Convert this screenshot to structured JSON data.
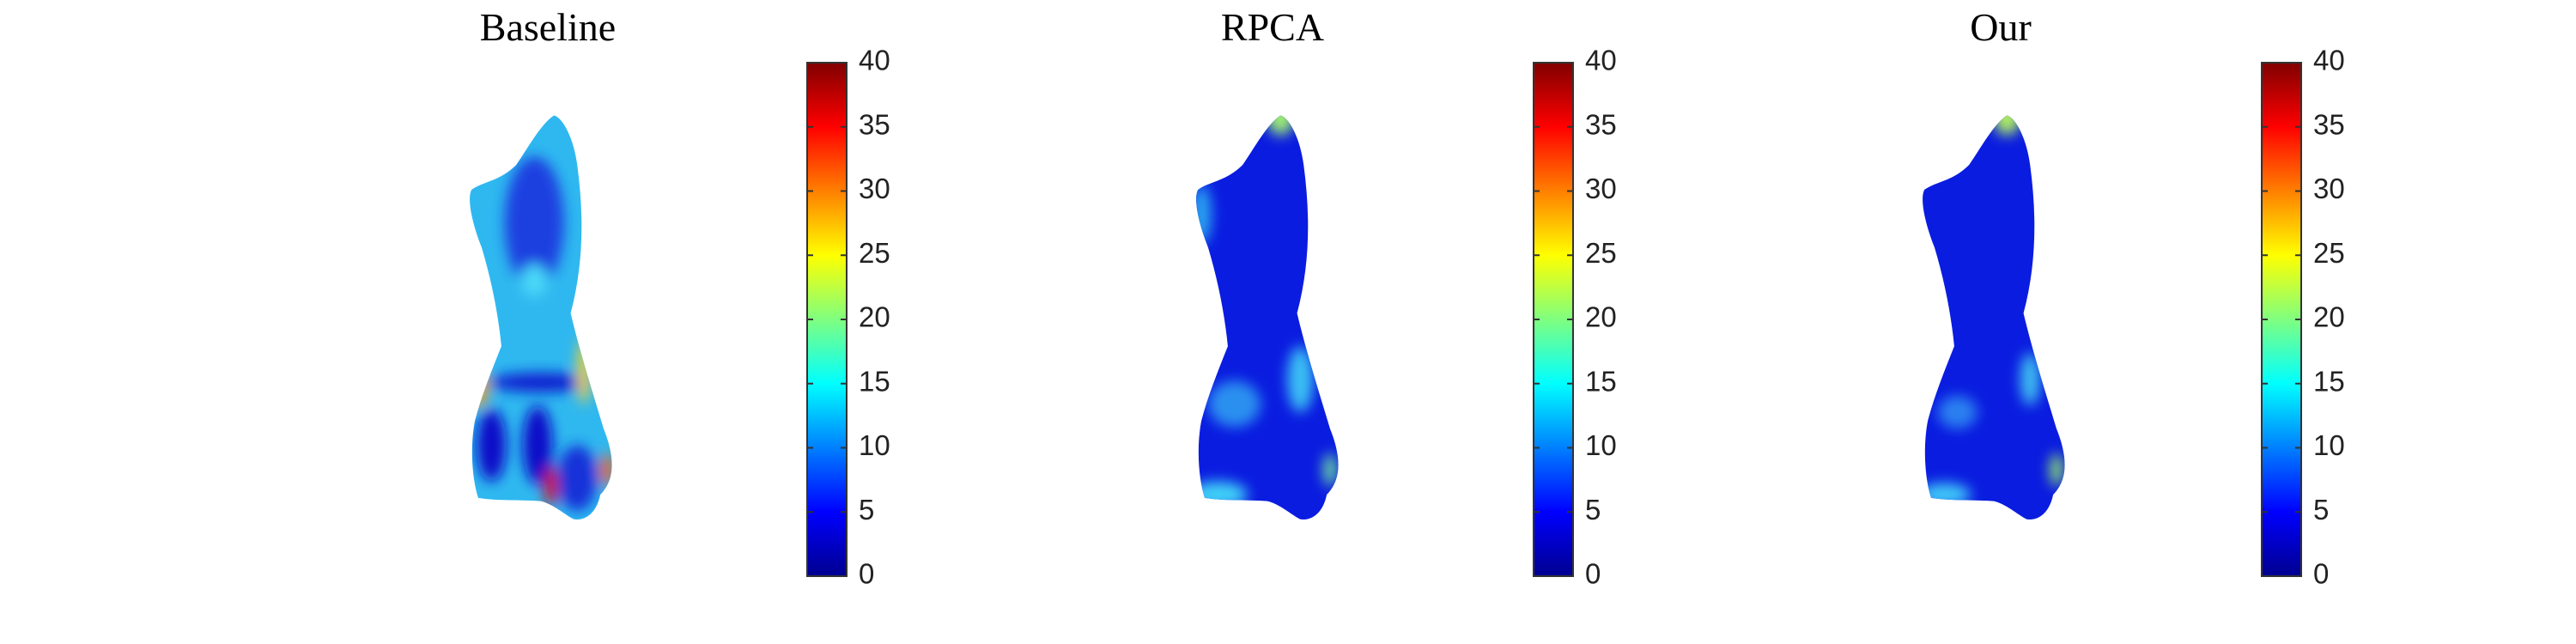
{
  "panels": [
    {
      "title": "Baseline",
      "colorbar": {
        "clim": [
          0,
          40
        ],
        "ticks": [
          0,
          5,
          10,
          15,
          20,
          25,
          30,
          35,
          40
        ]
      }
    },
    {
      "title": "RPCA",
      "colorbar": {
        "clim": [
          0,
          40
        ],
        "ticks": [
          0,
          5,
          10,
          15,
          20,
          25,
          30,
          35,
          40
        ]
      }
    },
    {
      "title": "Our",
      "colorbar": {
        "clim": [
          0,
          40
        ],
        "ticks": [
          0,
          5,
          10,
          15,
          20,
          25,
          30,
          35,
          40
        ]
      }
    }
  ]
}
